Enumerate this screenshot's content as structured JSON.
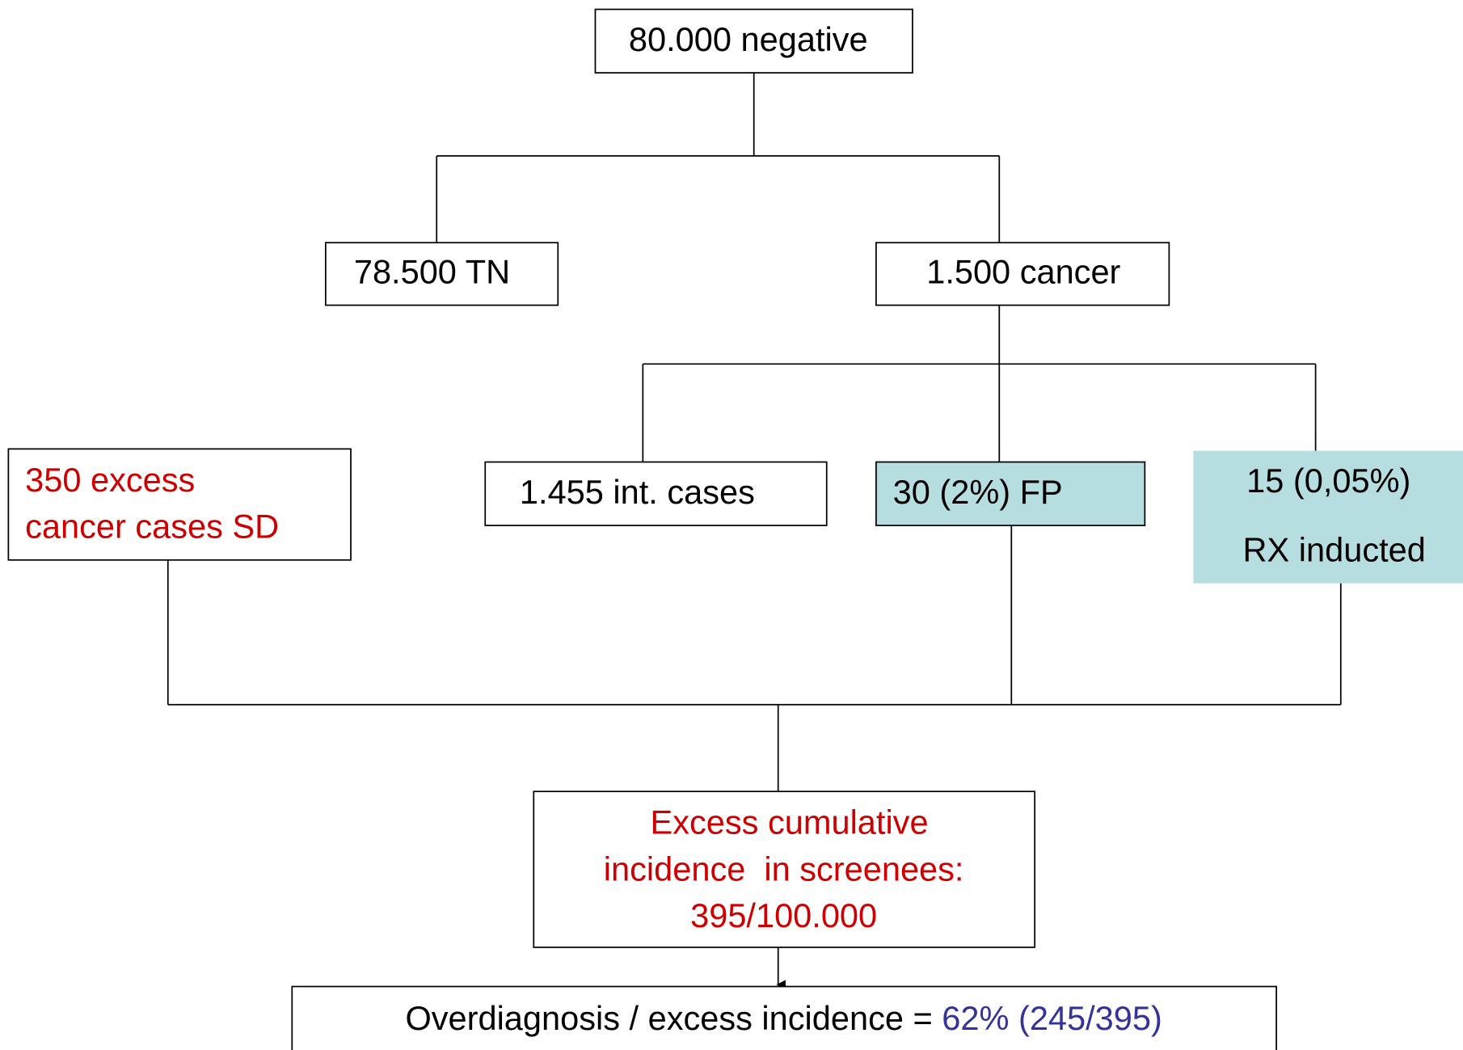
{
  "nodes": [
    {
      "lines": [
        "80.000 negative"
      ]
    },
    {
      "lines": [
        "78.500 TN"
      ]
    },
    {
      "lines": [
        "1.500 cancer"
      ]
    },
    {
      "lines": [
        "1.455 int. cases"
      ]
    },
    {
      "lines": [
        "30 (2%) FP"
      ]
    },
    {
      "lines": [
        "15 (0,05%)",
        "RX inducted"
      ]
    },
    {
      "lines": [
        "350 excess",
        "cancer cases SD"
      ]
    },
    {
      "lines": [
        "Excess cumulative",
        "incidence  in screenees:",
        "395/100.000"
      ]
    }
  ],
  "footer": {
    "label": "Overdiagnosis / excess incidence = ",
    "result": "62% (245/395)"
  }
}
